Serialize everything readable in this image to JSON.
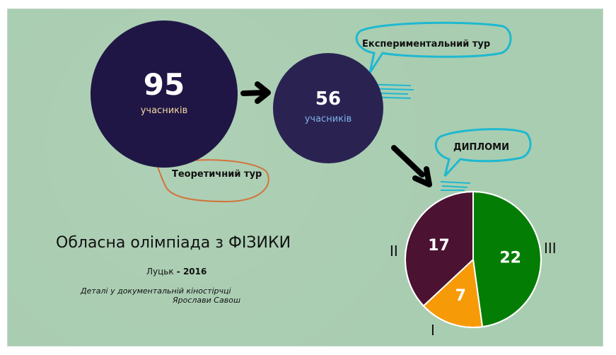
{
  "circles": {
    "stage1": {
      "value": "95",
      "label": "учасників"
    },
    "stage2": {
      "value": "56",
      "label": "учасників"
    }
  },
  "callouts": {
    "theoretical": "Теоретичний тур",
    "experimental": "Експериментальний тур",
    "diplomas": "ДИПЛОМИ"
  },
  "title": "Обласна олімпіада з ФІЗИКИ",
  "city": "Луцьк",
  "year_text": " - 2016",
  "details": {
    "line1": "Деталі у документальній кіностірчці",
    "line2": "Ярослави Савош"
  },
  "colors": {
    "background": "#a9cdb1",
    "circle_big": "#1f1646",
    "circle_small": "#2a2352",
    "callout_cyan": "#1fb8d0",
    "callout_orange": "#d2743b"
  },
  "chart_data": {
    "type": "pie",
    "categories": [
      "III",
      "I",
      "II"
    ],
    "values": [
      22,
      7,
      17
    ],
    "colors": [
      "#047d04",
      "#f79a08",
      "#4b1232"
    ]
  }
}
